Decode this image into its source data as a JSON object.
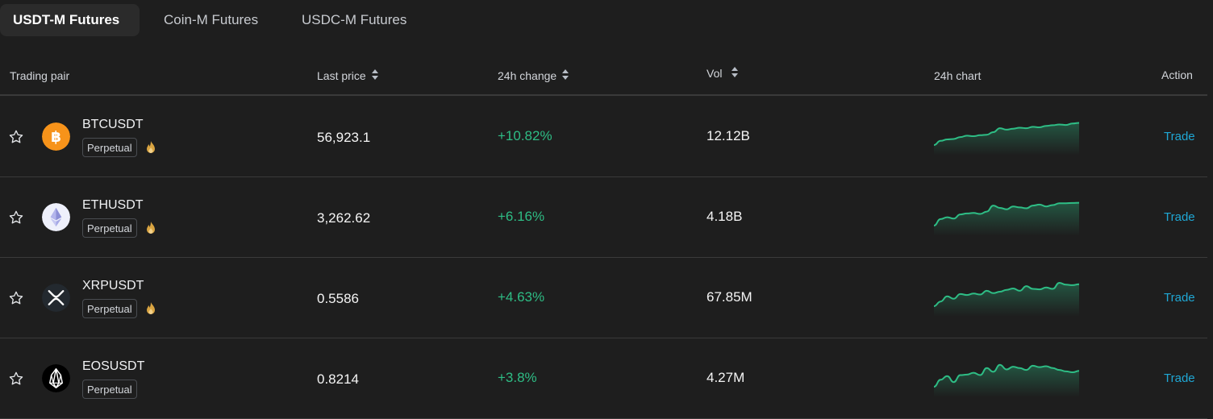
{
  "tabs": [
    {
      "label": "USDT-M Futures",
      "active": true
    },
    {
      "label": "Coin-M Futures",
      "active": false
    },
    {
      "label": "USDC-M Futures",
      "active": false
    }
  ],
  "columns": {
    "pair": "Trading pair",
    "price": "Last price",
    "change": "24h change",
    "vol": "Vol",
    "chart": "24h chart",
    "action": "Action"
  },
  "rows": [
    {
      "symbol": "BTCUSDT",
      "type": "Perpetual",
      "hot": true,
      "price": "56,923.1",
      "change": "+10.82%",
      "vol": "12.12B",
      "action": "Trade",
      "icon": "bitcoin-icon",
      "chart": [
        0.0,
        0.18,
        0.24,
        0.26,
        0.34,
        0.4,
        0.38,
        0.42,
        0.44,
        0.55,
        0.72,
        0.66,
        0.7,
        0.74,
        0.72,
        0.78,
        0.76,
        0.82,
        0.85,
        0.88,
        0.86,
        0.92,
        0.95
      ]
    },
    {
      "symbol": "ETHUSDT",
      "type": "Perpetual",
      "hot": true,
      "price": "3,262.62",
      "change": "+6.16%",
      "vol": "4.18B",
      "action": "Trade",
      "icon": "ethereum-icon",
      "chart": [
        0.0,
        0.28,
        0.36,
        0.3,
        0.48,
        0.52,
        0.54,
        0.5,
        0.6,
        0.86,
        0.76,
        0.7,
        0.82,
        0.78,
        0.74,
        0.86,
        0.9,
        0.82,
        0.88,
        0.96,
        0.96,
        0.97,
        0.98
      ]
    },
    {
      "symbol": "XRPUSDT",
      "type": "Perpetual",
      "hot": true,
      "price": "0.5586",
      "change": "+4.63%",
      "vol": "67.85M",
      "action": "Trade",
      "icon": "xrp-icon",
      "chart": [
        0.0,
        0.2,
        0.42,
        0.32,
        0.52,
        0.48,
        0.54,
        0.5,
        0.66,
        0.56,
        0.62,
        0.7,
        0.76,
        0.66,
        0.86,
        0.74,
        0.72,
        0.8,
        0.74,
        1.0,
        0.92,
        0.9,
        0.94
      ]
    },
    {
      "symbol": "EOSUSDT",
      "type": "Perpetual",
      "hot": false,
      "price": "0.8214",
      "change": "+3.8%",
      "vol": "4.27M",
      "action": "Trade",
      "icon": "eos-icon",
      "chart": [
        0.0,
        0.3,
        0.46,
        0.2,
        0.5,
        0.52,
        0.6,
        0.5,
        0.8,
        0.64,
        0.94,
        0.74,
        0.86,
        0.8,
        0.72,
        0.9,
        0.84,
        0.88,
        0.8,
        0.72,
        0.66,
        0.62,
        0.68
      ]
    }
  ],
  "colors": {
    "background": "#1e1e1e",
    "positive": "#2ebd85",
    "link": "#1fa7d4",
    "bitcoin": "#f7931a"
  }
}
